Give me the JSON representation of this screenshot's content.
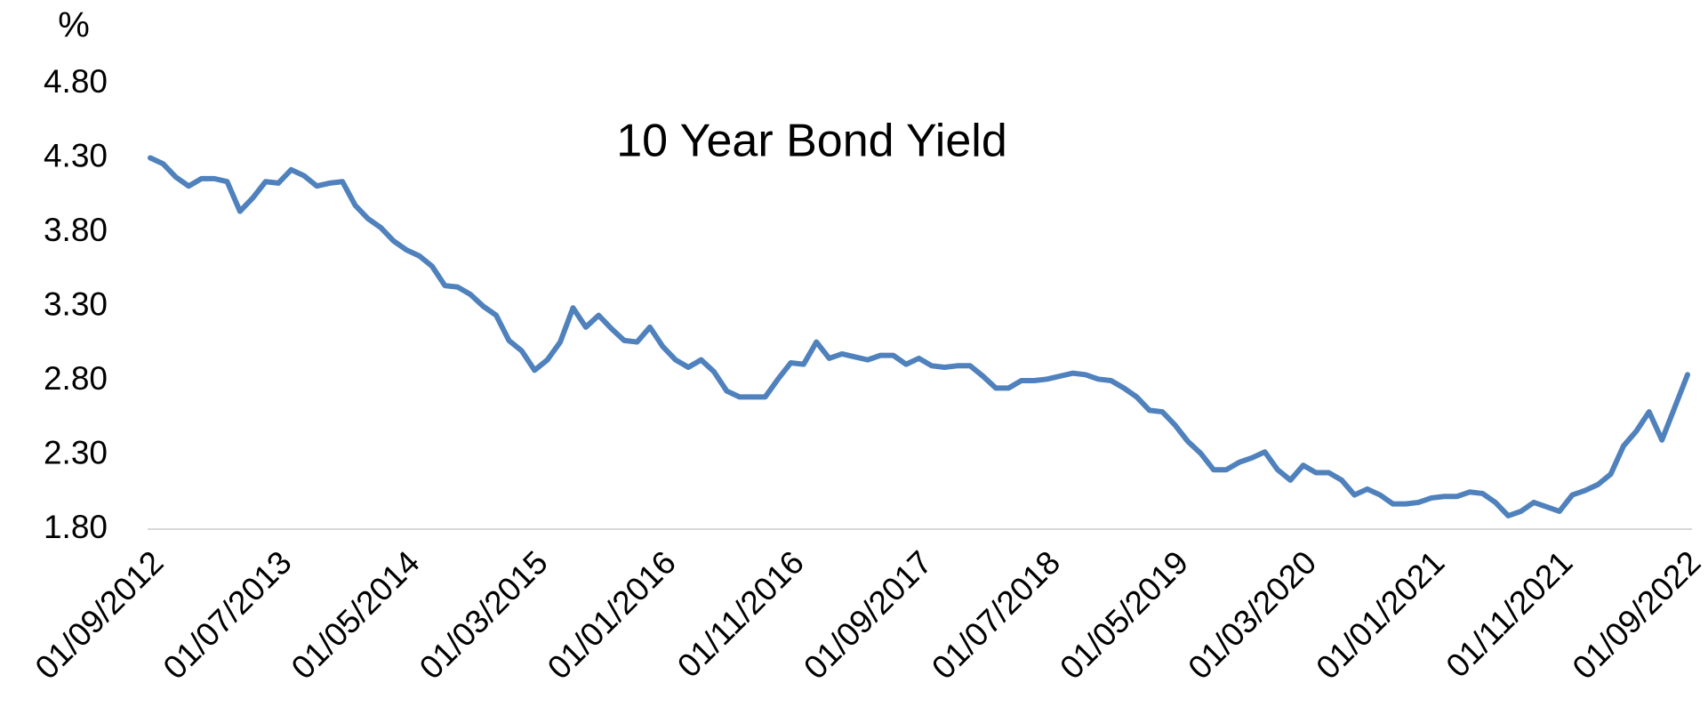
{
  "chart_data": {
    "type": "line",
    "y_label": "%",
    "annotation": "10 Year Bond Yield",
    "categories": [
      "01/09/2012",
      null,
      null,
      null,
      null,
      null,
      null,
      null,
      null,
      null,
      "01/07/2013",
      null,
      null,
      null,
      null,
      null,
      null,
      null,
      null,
      null,
      "01/05/2014",
      null,
      null,
      null,
      null,
      null,
      null,
      null,
      null,
      null,
      "01/03/2015",
      null,
      null,
      null,
      null,
      null,
      null,
      null,
      null,
      null,
      "01/01/2016",
      null,
      null,
      null,
      null,
      null,
      null,
      null,
      null,
      null,
      "01/11/2016",
      null,
      null,
      null,
      null,
      null,
      null,
      null,
      null,
      null,
      "01/09/2017",
      null,
      null,
      null,
      null,
      null,
      null,
      null,
      null,
      null,
      "01/07/2018",
      null,
      null,
      null,
      null,
      null,
      null,
      null,
      null,
      null,
      "01/05/2019",
      null,
      null,
      null,
      null,
      null,
      null,
      null,
      null,
      null,
      "01/03/2020",
      null,
      null,
      null,
      null,
      null,
      null,
      null,
      null,
      null,
      "01/01/2021",
      null,
      null,
      null,
      null,
      null,
      null,
      null,
      null,
      null,
      "01/11/2021",
      null,
      null,
      null,
      null,
      null,
      null,
      null,
      null,
      null,
      "01/09/2022"
    ],
    "series": [
      {
        "name": "10 Year Bond Yield",
        "color": "#4f81bd",
        "values": [
          4.3,
          4.26,
          4.17,
          4.11,
          4.16,
          4.16,
          4.14,
          3.94,
          4.03,
          4.14,
          4.13,
          4.22,
          4.18,
          4.11,
          4.13,
          4.14,
          3.98,
          3.89,
          3.83,
          3.74,
          3.68,
          3.64,
          3.57,
          3.44,
          3.43,
          3.38,
          3.3,
          3.24,
          3.07,
          3.0,
          2.87,
          2.94,
          3.06,
          3.29,
          3.16,
          3.24,
          3.15,
          3.07,
          3.06,
          3.16,
          3.03,
          2.94,
          2.89,
          2.94,
          2.86,
          2.73,
          2.69,
          2.69,
          2.69,
          2.81,
          2.92,
          2.91,
          3.06,
          2.95,
          2.98,
          2.96,
          2.94,
          2.97,
          2.97,
          2.91,
          2.95,
          2.9,
          2.89,
          2.9,
          2.9,
          2.83,
          2.75,
          2.75,
          2.8,
          2.8,
          2.81,
          2.83,
          2.85,
          2.84,
          2.81,
          2.8,
          2.75,
          2.69,
          2.6,
          2.59,
          2.5,
          2.39,
          2.31,
          2.2,
          2.2,
          2.25,
          2.28,
          2.32,
          2.2,
          2.13,
          2.23,
          2.18,
          2.18,
          2.13,
          2.03,
          2.07,
          2.03,
          1.97,
          1.97,
          1.98,
          2.01,
          2.02,
          2.02,
          2.05,
          2.04,
          1.98,
          1.89,
          1.92,
          1.98,
          1.95,
          1.92,
          2.03,
          2.06,
          2.1,
          2.17,
          2.36,
          2.46,
          2.59,
          2.4,
          2.62,
          2.84
        ]
      }
    ],
    "ylim": [
      1.8,
      4.8
    ],
    "yticks": [
      {
        "value": 1.8,
        "label": "1.80"
      },
      {
        "value": 2.3,
        "label": "2.30"
      },
      {
        "value": 2.8,
        "label": "2.80"
      },
      {
        "value": 3.3,
        "label": "3.30"
      },
      {
        "value": 3.8,
        "label": "3.80"
      },
      {
        "value": 4.3,
        "label": "4.30"
      },
      {
        "value": 4.8,
        "label": "4.80"
      }
    ],
    "grid": false
  }
}
